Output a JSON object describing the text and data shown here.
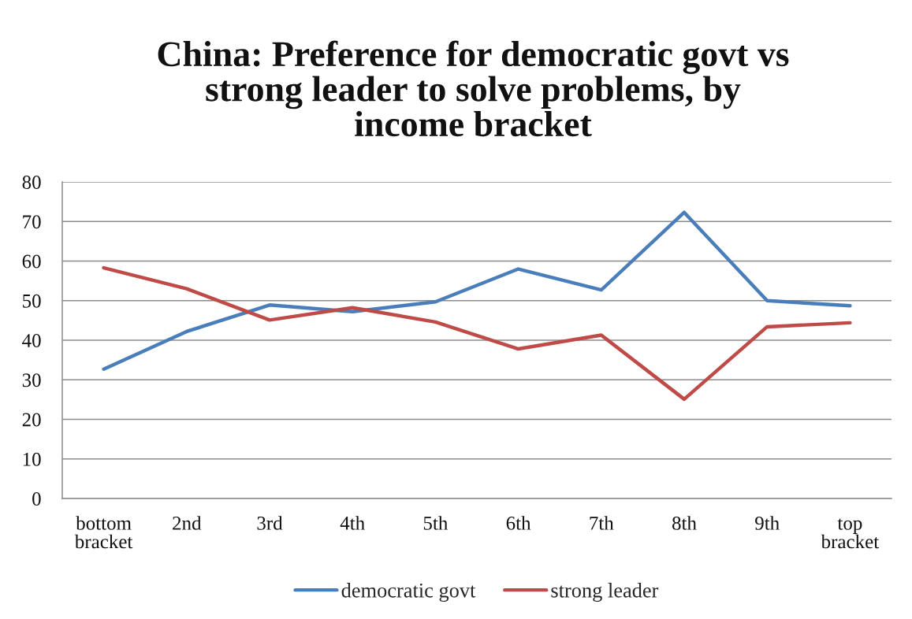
{
  "chart_data": {
    "type": "line",
    "title": "China: Preference for democratic govt vs\nstrong leader to solve problems, by\nincome bracket",
    "categories": [
      "bottom\nbracket",
      "2nd",
      "3rd",
      "4th",
      "5th",
      "6th",
      "7th",
      "8th",
      "9th",
      "top\nbracket"
    ],
    "series": [
      {
        "name": "democratic govt",
        "color": "#4a7ebb",
        "values": [
          32.7,
          42.2,
          48.9,
          47.2,
          49.7,
          58.0,
          52.7,
          72.3,
          50.0,
          48.7
        ]
      },
      {
        "name": "strong leader",
        "color": "#be4b48",
        "values": [
          58.3,
          53.0,
          45.1,
          48.2,
          44.6,
          37.8,
          41.3,
          25.1,
          43.4,
          44.4
        ]
      }
    ],
    "ylim": [
      0,
      80
    ],
    "yticks": [
      0,
      10,
      20,
      30,
      40,
      50,
      60,
      70,
      80
    ],
    "grid": "y",
    "legend": "bottom",
    "line_style": "solid"
  }
}
